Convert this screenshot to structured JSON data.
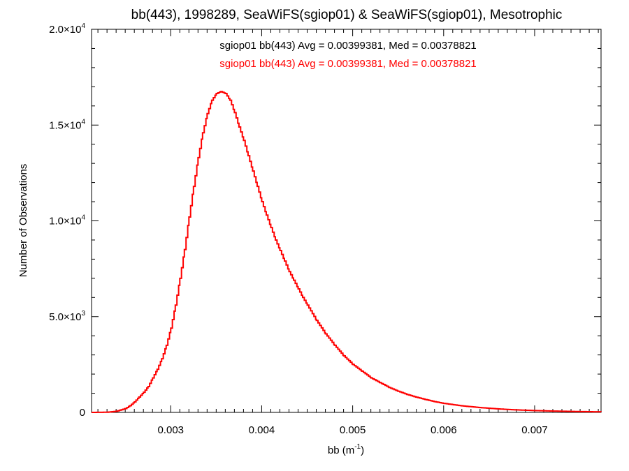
{
  "chart_data": {
    "type": "histogram",
    "title": "bb(443), 1998289, SeaWiFS(sgiop01) & SeaWiFS(sgiop01), Mesotrophic",
    "xlabel": {
      "base": "bb (m",
      "sup": "-1",
      "close": ")"
    },
    "ylabel": "Number of Observations",
    "xlim": [
      0.00213,
      0.00773
    ],
    "ylim": [
      0,
      20000
    ],
    "x_ticks": [
      {
        "value": 0.003,
        "label": "0.003"
      },
      {
        "value": 0.004,
        "label": "0.004"
      },
      {
        "value": 0.005,
        "label": "0.005"
      },
      {
        "value": 0.006,
        "label": "0.006"
      },
      {
        "value": 0.007,
        "label": "0.007"
      }
    ],
    "y_ticks": [
      {
        "value": 0,
        "label": "0",
        "sup": ""
      },
      {
        "value": 5000,
        "label": "5.0×10",
        "sup": "3"
      },
      {
        "value": 10000,
        "label": "1.0×10",
        "sup": "4"
      },
      {
        "value": 15000,
        "label": "1.5×10",
        "sup": "4"
      },
      {
        "value": 20000,
        "label": "2.0×10",
        "sup": "4"
      }
    ],
    "grid": false,
    "annotations": [
      {
        "text": "sgiop01 bb(443) Avg = 0.00399381, Med = 0.00378821",
        "color": "#000000"
      },
      {
        "text": "sgiop01 bb(443) Avg = 0.00399381, Med = 0.00378821",
        "color": "#ff0000"
      }
    ],
    "series": [
      {
        "color": "#ff0000",
        "points": [
          [
            0.00213,
            0
          ],
          [
            0.0023,
            10
          ],
          [
            0.0024,
            60
          ],
          [
            0.0025,
            200
          ],
          [
            0.00255,
            350
          ],
          [
            0.0026,
            550
          ],
          [
            0.00265,
            800
          ],
          [
            0.0027,
            1050
          ],
          [
            0.00275,
            1350
          ],
          [
            0.0028,
            1800
          ],
          [
            0.00285,
            2250
          ],
          [
            0.0029,
            2800
          ],
          [
            0.00295,
            3500
          ],
          [
            0.003,
            4400
          ],
          [
            0.00305,
            5600
          ],
          [
            0.0031,
            7000
          ],
          [
            0.00315,
            8500
          ],
          [
            0.0032,
            10200
          ],
          [
            0.00325,
            11800
          ],
          [
            0.0033,
            13300
          ],
          [
            0.00335,
            14600
          ],
          [
            0.0034,
            15600
          ],
          [
            0.00345,
            16300
          ],
          [
            0.0035,
            16650
          ],
          [
            0.00355,
            16750
          ],
          [
            0.0036,
            16650
          ],
          [
            0.00365,
            16300
          ],
          [
            0.0037,
            15650
          ],
          [
            0.00375,
            14900
          ],
          [
            0.0038,
            14200
          ],
          [
            0.00385,
            13400
          ],
          [
            0.0039,
            12600
          ],
          [
            0.00395,
            11800
          ],
          [
            0.004,
            11000
          ],
          [
            0.00405,
            10300
          ],
          [
            0.0041,
            9650
          ],
          [
            0.00415,
            9000
          ],
          [
            0.0042,
            8450
          ],
          [
            0.00425,
            7900
          ],
          [
            0.0043,
            7350
          ],
          [
            0.00435,
            6900
          ],
          [
            0.0044,
            6450
          ],
          [
            0.00445,
            6000
          ],
          [
            0.0045,
            5600
          ],
          [
            0.0046,
            4800
          ],
          [
            0.0047,
            4100
          ],
          [
            0.0048,
            3500
          ],
          [
            0.0049,
            2950
          ],
          [
            0.005,
            2500
          ],
          [
            0.0051,
            2150
          ],
          [
            0.0052,
            1800
          ],
          [
            0.0053,
            1550
          ],
          [
            0.0054,
            1300
          ],
          [
            0.0055,
            1100
          ],
          [
            0.0056,
            930
          ],
          [
            0.0057,
            790
          ],
          [
            0.0058,
            670
          ],
          [
            0.0059,
            560
          ],
          [
            0.006,
            470
          ],
          [
            0.0062,
            340
          ],
          [
            0.0064,
            250
          ],
          [
            0.0066,
            180
          ],
          [
            0.0068,
            130
          ],
          [
            0.007,
            95
          ],
          [
            0.0072,
            70
          ],
          [
            0.0074,
            50
          ],
          [
            0.0076,
            35
          ],
          [
            0.00773,
            30
          ]
        ]
      }
    ]
  }
}
